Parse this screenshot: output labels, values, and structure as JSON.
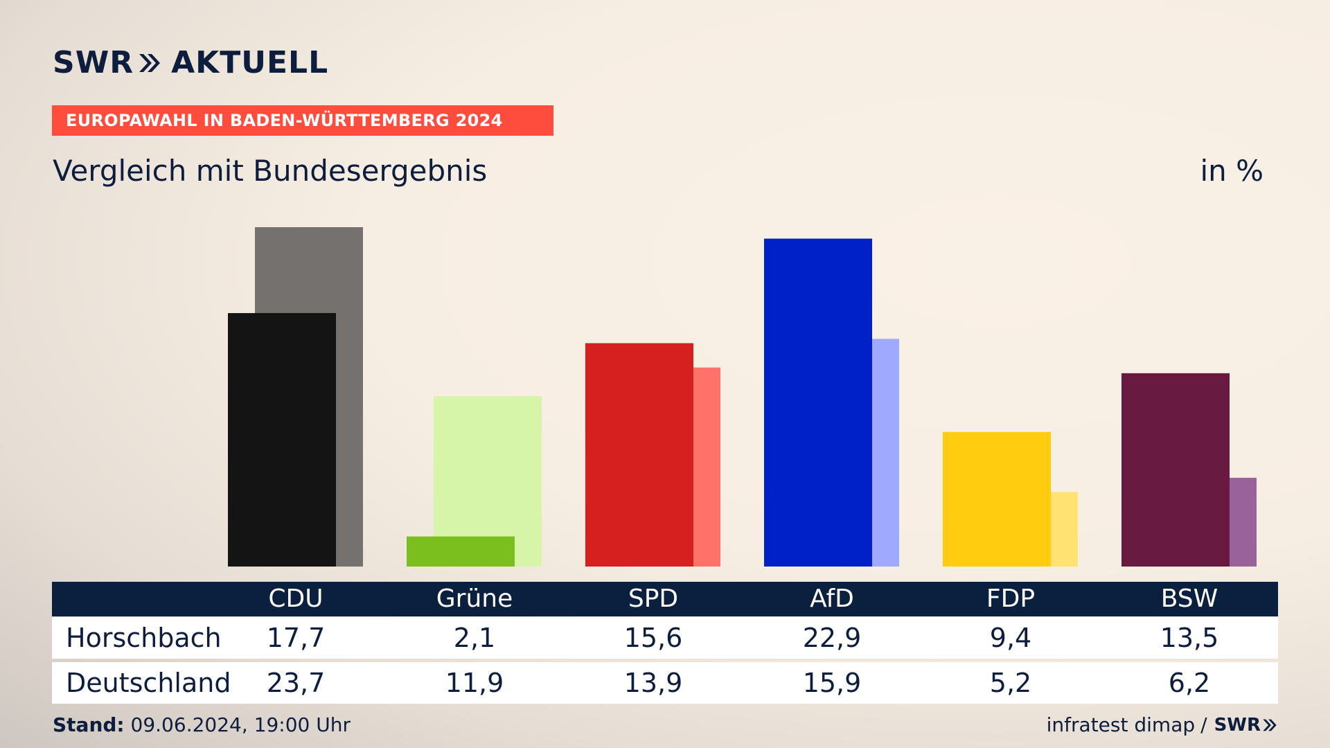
{
  "brand": {
    "logo_text_left": "SWR",
    "logo_text_right": "AKTUELL",
    "logo_icon": "double-chevron-icon"
  },
  "banner": {
    "text": "EUROPAWAHL IN BADEN-WÜRTTEMBERG 2024",
    "color": "#ff4d3d"
  },
  "subtitle": "Vergleich mit Bundesergebnis",
  "unit": "in %",
  "table": {
    "rows": [
      {
        "label": "Horschbach",
        "values": [
          "17,7",
          "2,1",
          "15,6",
          "22,9",
          "9,4",
          "13,5"
        ]
      },
      {
        "label": "Deutschland",
        "values": [
          "23,7",
          "11,9",
          "13,9",
          "15,9",
          "5,2",
          "6,2"
        ]
      }
    ]
  },
  "footer": {
    "stand_label": "Stand:",
    "stand_value": "09.06.2024, 19:00 Uhr",
    "source": "infratest dimap",
    "separator": "/",
    "brand": "SWR"
  },
  "chart_data": {
    "type": "bar",
    "categories": [
      "CDU",
      "Grüne",
      "SPD",
      "AfD",
      "FDP",
      "BSW"
    ],
    "series": [
      {
        "name": "Horschbach",
        "values": [
          17.7,
          2.1,
          15.6,
          22.9,
          9.4,
          13.5
        ]
      },
      {
        "name": "Deutschland",
        "values": [
          23.7,
          11.9,
          13.9,
          15.9,
          5.2,
          6.2
        ]
      }
    ],
    "colors_primary": [
      "#141414",
      "#7abf1e",
      "#d61f1f",
      "#0020c8",
      "#ffcc0f",
      "#691a40"
    ],
    "colors_secondary": [
      "#74716f",
      "#d6f5a8",
      "#ff7269",
      "#9faaff",
      "#ffe271",
      "#9a629a"
    ],
    "ylim": [
      0,
      23.7
    ],
    "grid": false,
    "legend": "table-below"
  }
}
